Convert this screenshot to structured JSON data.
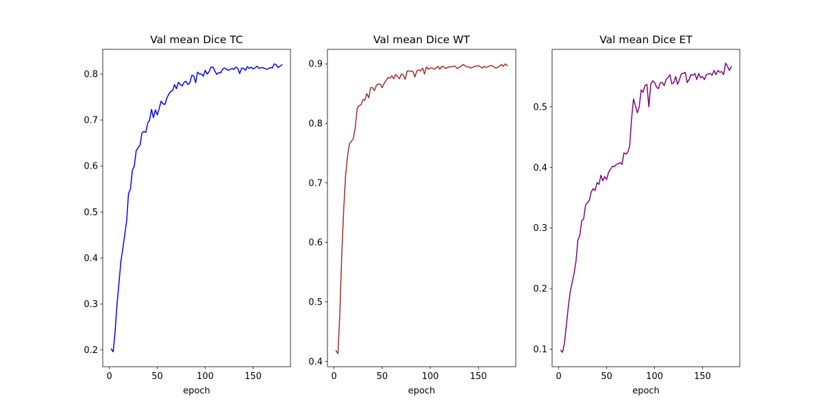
{
  "chart_data": [
    {
      "type": "line",
      "title": "Val mean Dice TC",
      "xlabel": "epoch",
      "ylabel": "",
      "xlim": [
        -6.9,
        188.9
      ],
      "ylim": [
        0.1636,
        0.8536
      ],
      "xticks": [
        0,
        50,
        100,
        150
      ],
      "yticks": [
        0.2,
        0.3,
        0.4,
        0.5,
        0.6,
        0.7,
        0.8
      ],
      "xtick_labels": [
        "0",
        "50",
        "100",
        "150"
      ],
      "ytick_labels": [
        "0.2",
        "0.3",
        "0.4",
        "0.5",
        "0.6",
        "0.7",
        "0.8"
      ],
      "grid": false,
      "series": [
        {
          "color": "#0000ff",
          "x": [
            2,
            4,
            6,
            8,
            10,
            12,
            14,
            16,
            18,
            20,
            22,
            24,
            26,
            28,
            30,
            32,
            34,
            36,
            38,
            40,
            42,
            44,
            46,
            48,
            50,
            52,
            54,
            56,
            58,
            60,
            62,
            64,
            66,
            68,
            70,
            72,
            74,
            76,
            78,
            80,
            82,
            84,
            86,
            88,
            90,
            92,
            94,
            96,
            98,
            100,
            102,
            104,
            106,
            108,
            110,
            112,
            114,
            116,
            118,
            120,
            122,
            124,
            126,
            128,
            130,
            132,
            134,
            136,
            138,
            140,
            142,
            144,
            146,
            148,
            150,
            152,
            154,
            156,
            158,
            160,
            162,
            164,
            166,
            168,
            170,
            172,
            174,
            176,
            178,
            180
          ],
          "y": [
            0.202,
            0.196,
            0.24,
            0.3,
            0.345,
            0.392,
            0.42,
            0.45,
            0.48,
            0.54,
            0.55,
            0.59,
            0.6,
            0.633,
            0.64,
            0.645,
            0.672,
            0.675,
            0.673,
            0.693,
            0.7,
            0.723,
            0.705,
            0.722,
            0.711,
            0.725,
            0.741,
            0.735,
            0.734,
            0.748,
            0.756,
            0.762,
            0.764,
            0.777,
            0.768,
            0.782,
            0.777,
            0.774,
            0.782,
            0.784,
            0.777,
            0.781,
            0.797,
            0.796,
            0.781,
            0.804,
            0.8,
            0.8,
            0.795,
            0.808,
            0.8,
            0.805,
            0.815,
            0.815,
            0.807,
            0.799,
            0.803,
            0.802,
            0.81,
            0.813,
            0.811,
            0.808,
            0.81,
            0.812,
            0.81,
            0.815,
            0.812,
            0.801,
            0.813,
            0.812,
            0.808,
            0.816,
            0.812,
            0.815,
            0.811,
            0.813,
            0.817,
            0.812,
            0.814,
            0.814,
            0.812,
            0.81,
            0.812,
            0.814,
            0.813,
            0.822,
            0.82,
            0.814,
            0.817,
            0.82
          ]
        }
      ]
    },
    {
      "type": "line",
      "title": "Val mean Dice WT",
      "xlabel": "epoch",
      "ylabel": "",
      "xlim": [
        -6.9,
        188.9
      ],
      "ylim": [
        0.3911,
        0.9244
      ],
      "xticks": [
        0,
        50,
        100,
        150
      ],
      "yticks": [
        0.4,
        0.5,
        0.6,
        0.7,
        0.8,
        0.9
      ],
      "xtick_labels": [
        "0",
        "50",
        "100",
        "150"
      ],
      "ytick_labels": [
        "0.4",
        "0.5",
        "0.6",
        "0.7",
        "0.8",
        "0.9"
      ],
      "grid": false,
      "series": [
        {
          "color": "#a52a2a",
          "x": [
            2,
            4,
            6,
            8,
            10,
            12,
            14,
            16,
            18,
            20,
            22,
            24,
            26,
            28,
            30,
            32,
            34,
            36,
            38,
            40,
            42,
            44,
            46,
            48,
            50,
            52,
            54,
            56,
            58,
            60,
            62,
            64,
            66,
            68,
            70,
            72,
            74,
            76,
            78,
            80,
            82,
            84,
            86,
            88,
            90,
            92,
            94,
            96,
            98,
            100,
            102,
            104,
            106,
            108,
            110,
            112,
            114,
            116,
            118,
            120,
            122,
            124,
            126,
            128,
            130,
            132,
            134,
            136,
            138,
            140,
            142,
            144,
            146,
            148,
            150,
            152,
            154,
            156,
            158,
            160,
            162,
            164,
            166,
            168,
            170,
            172,
            174,
            176,
            178,
            180
          ],
          "y": [
            0.418,
            0.413,
            0.48,
            0.58,
            0.655,
            0.713,
            0.745,
            0.766,
            0.77,
            0.774,
            0.793,
            0.825,
            0.83,
            0.831,
            0.84,
            0.839,
            0.85,
            0.843,
            0.86,
            0.86,
            0.855,
            0.864,
            0.866,
            0.866,
            0.86,
            0.867,
            0.872,
            0.877,
            0.876,
            0.88,
            0.875,
            0.882,
            0.879,
            0.875,
            0.883,
            0.881,
            0.874,
            0.888,
            0.888,
            0.888,
            0.887,
            0.878,
            0.888,
            0.89,
            0.888,
            0.893,
            0.883,
            0.895,
            0.891,
            0.893,
            0.893,
            0.891,
            0.893,
            0.896,
            0.891,
            0.896,
            0.895,
            0.892,
            0.894,
            0.895,
            0.895,
            0.896,
            0.896,
            0.892,
            0.894,
            0.896,
            0.899,
            0.897,
            0.895,
            0.895,
            0.893,
            0.894,
            0.896,
            0.896,
            0.897,
            0.895,
            0.893,
            0.896,
            0.894,
            0.895,
            0.897,
            0.897,
            0.895,
            0.893,
            0.894,
            0.896,
            0.899,
            0.896,
            0.9,
            0.897
          ]
        }
      ]
    },
    {
      "type": "line",
      "title": "Val mean Dice ET",
      "xlabel": "epoch",
      "ylabel": "",
      "xlim": [
        -6.9,
        188.9
      ],
      "ylim": [
        0.0712,
        0.5948
      ],
      "xticks": [
        0,
        50,
        100,
        150
      ],
      "yticks": [
        0.1,
        0.2,
        0.3,
        0.4,
        0.5
      ],
      "xtick_labels": [
        "0",
        "50",
        "100",
        "150"
      ],
      "ytick_labels": [
        "0.1",
        "0.2",
        "0.3",
        "0.4",
        "0.5"
      ],
      "grid": false,
      "series": [
        {
          "color": "#800080",
          "x": [
            2,
            4,
            6,
            8,
            10,
            12,
            14,
            16,
            18,
            20,
            22,
            24,
            26,
            28,
            30,
            32,
            34,
            36,
            38,
            40,
            42,
            44,
            46,
            48,
            50,
            52,
            54,
            56,
            58,
            60,
            62,
            64,
            66,
            68,
            70,
            72,
            74,
            76,
            78,
            80,
            82,
            84,
            86,
            88,
            90,
            92,
            94,
            96,
            98,
            100,
            102,
            104,
            106,
            108,
            110,
            112,
            114,
            116,
            118,
            120,
            122,
            124,
            126,
            128,
            130,
            132,
            134,
            136,
            138,
            140,
            142,
            144,
            146,
            148,
            150,
            152,
            154,
            156,
            158,
            160,
            162,
            164,
            166,
            168,
            170,
            172,
            174,
            176,
            178,
            180
          ],
          "y": [
            0.098,
            0.095,
            0.11,
            0.14,
            0.17,
            0.195,
            0.21,
            0.225,
            0.245,
            0.28,
            0.288,
            0.312,
            0.315,
            0.338,
            0.342,
            0.346,
            0.36,
            0.365,
            0.362,
            0.375,
            0.372,
            0.387,
            0.378,
            0.385,
            0.38,
            0.392,
            0.397,
            0.402,
            0.401,
            0.405,
            0.406,
            0.408,
            0.405,
            0.424,
            0.422,
            0.425,
            0.435,
            0.48,
            0.513,
            0.502,
            0.49,
            0.5,
            0.528,
            0.524,
            0.535,
            0.537,
            0.5,
            0.537,
            0.543,
            0.54,
            0.533,
            0.53,
            0.54,
            0.54,
            0.535,
            0.545,
            0.548,
            0.553,
            0.538,
            0.54,
            0.55,
            0.537,
            0.545,
            0.555,
            0.555,
            0.557,
            0.54,
            0.545,
            0.553,
            0.552,
            0.555,
            0.545,
            0.555,
            0.548,
            0.55,
            0.545,
            0.553,
            0.554,
            0.555,
            0.552,
            0.56,
            0.553,
            0.56,
            0.557,
            0.558,
            0.553,
            0.572,
            0.567,
            0.56,
            0.566
          ]
        }
      ]
    }
  ]
}
